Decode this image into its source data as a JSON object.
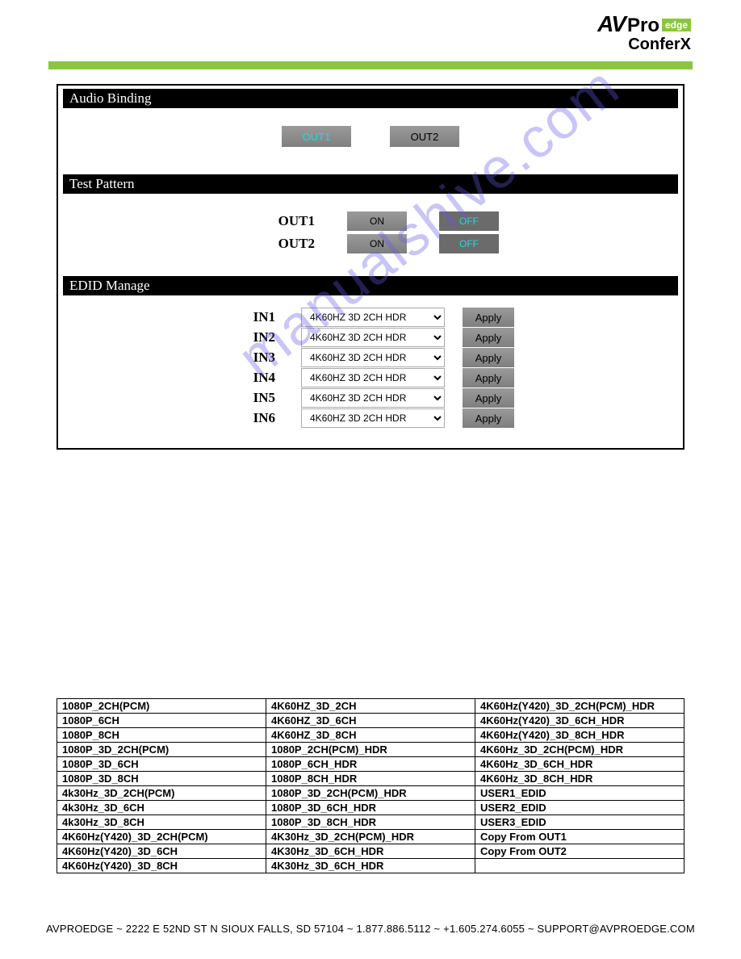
{
  "logo": {
    "av": "AV",
    "pro": "Pro",
    "edge": "edge",
    "sub": "ConferX"
  },
  "colors": {
    "accent_green": "#8ac640",
    "active_cyan": "#22dadd",
    "btn_grad_top": "#9a9a9a",
    "btn_grad_bottom": "#7f7f7f",
    "off_bg": "#6b6b6b"
  },
  "sections": {
    "audio_binding": "Audio Binding",
    "test_pattern": "Test Pattern",
    "edid_manage": "EDID Manage"
  },
  "audio_binding": {
    "buttons": [
      {
        "label": "OUT1",
        "active": true
      },
      {
        "label": "OUT2",
        "active": false
      }
    ]
  },
  "test_pattern": {
    "rows": [
      {
        "label": "OUT1",
        "on": "ON",
        "off": "OFF"
      },
      {
        "label": "OUT2",
        "on": "ON",
        "off": "OFF"
      }
    ]
  },
  "edid": {
    "default_option": "4K60HZ 3D 2CH HDR",
    "apply_label": "Apply",
    "rows": [
      {
        "label": "IN1"
      },
      {
        "label": "IN2"
      },
      {
        "label": "IN3"
      },
      {
        "label": "IN4"
      },
      {
        "label": "IN5"
      },
      {
        "label": "IN6"
      }
    ]
  },
  "options_table": {
    "rows": [
      [
        "1080P_2CH(PCM)",
        "4K60HZ_3D_2CH",
        "4K60Hz(Y420)_3D_2CH(PCM)_HDR"
      ],
      [
        "1080P_6CH",
        "4K60HZ_3D_6CH",
        "4K60Hz(Y420)_3D_6CH_HDR"
      ],
      [
        "1080P_8CH",
        "4K60HZ_3D_8CH",
        "4K60Hz(Y420)_3D_8CH_HDR"
      ],
      [
        "1080P_3D_2CH(PCM)",
        "1080P_2CH(PCM)_HDR",
        "4K60Hz_3D_2CH(PCM)_HDR"
      ],
      [
        "1080P_3D_6CH",
        "1080P_6CH_HDR",
        "4K60Hz_3D_6CH_HDR"
      ],
      [
        "1080P_3D_8CH",
        "1080P_8CH_HDR",
        "4K60Hz_3D_8CH_HDR"
      ],
      [
        "4k30Hz_3D_2CH(PCM)",
        "1080P_3D_2CH(PCM)_HDR",
        "USER1_EDID"
      ],
      [
        "4k30Hz_3D_6CH",
        "1080P_3D_6CH_HDR",
        "USER2_EDID"
      ],
      [
        "4k30Hz_3D_8CH",
        "1080P_3D_8CH_HDR",
        "USER3_EDID"
      ],
      [
        "4K60Hz(Y420)_3D_2CH(PCM)",
        "4K30Hz_3D_2CH(PCM)_HDR",
        "Copy From OUT1"
      ],
      [
        "4K60Hz(Y420)_3D_6CH",
        "4K30Hz_3D_6CH_HDR",
        "Copy From OUT2"
      ],
      [
        "4K60Hz(Y420)_3D_8CH",
        "4K30Hz_3D_6CH_HDR",
        ""
      ]
    ]
  },
  "watermark": "manualshive.com",
  "footer": "AVPROEDGE ~ 2222 E 52ND ST N SIOUX FALLS, SD 57104 ~ 1.877.886.5112 ~ +1.605.274.6055 ~ SUPPORT@AVPROEDGE.COM"
}
